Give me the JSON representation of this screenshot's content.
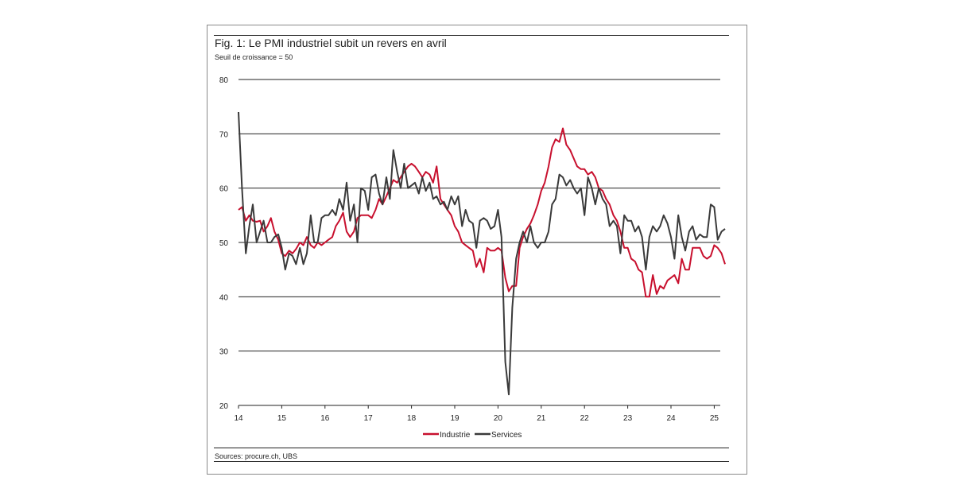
{
  "chart_data": {
    "type": "line",
    "title": "Fig. 1: Le PMI industriel subit un revers en avril",
    "subtitle": "Seuil de croissance = 50",
    "source": "Sources: procure.ch, UBS",
    "ylim": [
      20,
      80
    ],
    "yticks": [
      "20",
      "30",
      "40",
      "50",
      "60",
      "70",
      "80"
    ],
    "xlim": [
      14,
      25.25
    ],
    "xticks": [
      "14",
      "15",
      "16",
      "17",
      "18",
      "19",
      "20",
      "21",
      "22",
      "23",
      "24",
      "25"
    ],
    "grid": "horizontal",
    "legend": "bottom-center",
    "series": [
      {
        "name": "Industrie",
        "color": "#c8102e",
        "points": [
          [
            14.0,
            56.0
          ],
          [
            14.08,
            56.5
          ],
          [
            14.17,
            54.0
          ],
          [
            14.25,
            55.0
          ],
          [
            14.33,
            54.0
          ],
          [
            14.42,
            53.8
          ],
          [
            14.5,
            54.0
          ],
          [
            14.58,
            52.0
          ],
          [
            14.67,
            53.0
          ],
          [
            14.75,
            54.5
          ],
          [
            14.83,
            52.0
          ],
          [
            14.92,
            50.5
          ],
          [
            15.0,
            48.0
          ],
          [
            15.08,
            47.5
          ],
          [
            15.17,
            48.5
          ],
          [
            15.25,
            48.0
          ],
          [
            15.33,
            48.8
          ],
          [
            15.42,
            50.0
          ],
          [
            15.5,
            49.5
          ],
          [
            15.58,
            51.0
          ],
          [
            15.67,
            49.5
          ],
          [
            15.75,
            49.0
          ],
          [
            15.83,
            50.0
          ],
          [
            15.92,
            49.5
          ],
          [
            16.0,
            50.0
          ],
          [
            16.08,
            50.5
          ],
          [
            16.17,
            51.0
          ],
          [
            16.25,
            53.0
          ],
          [
            16.33,
            54.0
          ],
          [
            16.42,
            55.5
          ],
          [
            16.5,
            52.0
          ],
          [
            16.58,
            51.0
          ],
          [
            16.67,
            52.0
          ],
          [
            16.75,
            54.5
          ],
          [
            16.83,
            55.0
          ],
          [
            16.92,
            55.0
          ],
          [
            17.0,
            55.0
          ],
          [
            17.08,
            54.5
          ],
          [
            17.17,
            56.0
          ],
          [
            17.25,
            58.0
          ],
          [
            17.33,
            57.0
          ],
          [
            17.42,
            58.5
          ],
          [
            17.5,
            60.0
          ],
          [
            17.58,
            61.5
          ],
          [
            17.67,
            61.0
          ],
          [
            17.75,
            62.0
          ],
          [
            17.83,
            63.0
          ],
          [
            17.92,
            64.0
          ],
          [
            18.0,
            64.5
          ],
          [
            18.08,
            64.0
          ],
          [
            18.17,
            63.0
          ],
          [
            18.25,
            62.0
          ],
          [
            18.33,
            63.0
          ],
          [
            18.42,
            62.5
          ],
          [
            18.5,
            61.0
          ],
          [
            18.58,
            64.0
          ],
          [
            18.67,
            58.0
          ],
          [
            18.75,
            57.0
          ],
          [
            18.83,
            56.0
          ],
          [
            18.92,
            55.0
          ],
          [
            19.0,
            53.0
          ],
          [
            19.08,
            52.0
          ],
          [
            19.17,
            50.0
          ],
          [
            19.25,
            49.5
          ],
          [
            19.33,
            49.0
          ],
          [
            19.42,
            48.5
          ],
          [
            19.5,
            45.5
          ],
          [
            19.58,
            47.0
          ],
          [
            19.67,
            44.5
          ],
          [
            19.75,
            49.0
          ],
          [
            19.83,
            48.5
          ],
          [
            19.92,
            48.5
          ],
          [
            20.0,
            49.0
          ],
          [
            20.08,
            48.5
          ],
          [
            20.17,
            43.5
          ],
          [
            20.25,
            41.0
          ],
          [
            20.33,
            42.0
          ],
          [
            20.42,
            42.0
          ],
          [
            20.5,
            49.0
          ],
          [
            20.58,
            51.0
          ],
          [
            20.67,
            52.5
          ],
          [
            20.75,
            53.5
          ],
          [
            20.83,
            55.0
          ],
          [
            20.92,
            57.0
          ],
          [
            21.0,
            59.5
          ],
          [
            21.08,
            61.0
          ],
          [
            21.17,
            64.0
          ],
          [
            21.25,
            67.5
          ],
          [
            21.33,
            69.0
          ],
          [
            21.42,
            68.5
          ],
          [
            21.5,
            71.0
          ],
          [
            21.58,
            68.0
          ],
          [
            21.67,
            67.0
          ],
          [
            21.75,
            65.5
          ],
          [
            21.83,
            64.0
          ],
          [
            21.92,
            63.5
          ],
          [
            22.0,
            63.5
          ],
          [
            22.08,
            62.5
          ],
          [
            22.17,
            63.0
          ],
          [
            22.25,
            62.0
          ],
          [
            22.33,
            60.0
          ],
          [
            22.42,
            59.5
          ],
          [
            22.5,
            58.0
          ],
          [
            22.58,
            57.0
          ],
          [
            22.67,
            55.0
          ],
          [
            22.75,
            54.0
          ],
          [
            22.83,
            52.0
          ],
          [
            22.92,
            49.0
          ],
          [
            23.0,
            49.0
          ],
          [
            23.08,
            47.0
          ],
          [
            23.17,
            46.5
          ],
          [
            23.25,
            45.0
          ],
          [
            23.33,
            44.5
          ],
          [
            23.42,
            40.0
          ],
          [
            23.5,
            40.0
          ],
          [
            23.58,
            44.0
          ],
          [
            23.67,
            40.5
          ],
          [
            23.75,
            42.0
          ],
          [
            23.83,
            41.5
          ],
          [
            23.92,
            43.0
          ],
          [
            24.0,
            43.5
          ],
          [
            24.08,
            44.0
          ],
          [
            24.17,
            42.5
          ],
          [
            24.25,
            47.0
          ],
          [
            24.33,
            45.0
          ],
          [
            24.42,
            45.0
          ],
          [
            24.5,
            49.0
          ],
          [
            24.58,
            49.0
          ],
          [
            24.67,
            49.0
          ],
          [
            24.75,
            47.5
          ],
          [
            24.83,
            47.0
          ],
          [
            24.92,
            47.5
          ],
          [
            25.0,
            49.5
          ],
          [
            25.08,
            49.0
          ],
          [
            25.17,
            48.0
          ],
          [
            25.25,
            46.0
          ]
        ]
      },
      {
        "name": "Services",
        "color": "#3a3a3a",
        "points": [
          [
            14.0,
            74.0
          ],
          [
            14.08,
            60.0
          ],
          [
            14.17,
            48.0
          ],
          [
            14.25,
            53.0
          ],
          [
            14.33,
            57.0
          ],
          [
            14.42,
            50.0
          ],
          [
            14.5,
            52.0
          ],
          [
            14.58,
            54.0
          ],
          [
            14.67,
            50.0
          ],
          [
            14.75,
            50.0
          ],
          [
            14.83,
            51.0
          ],
          [
            14.92,
            51.5
          ],
          [
            15.0,
            49.0
          ],
          [
            15.08,
            45.0
          ],
          [
            15.17,
            48.0
          ],
          [
            15.25,
            47.5
          ],
          [
            15.33,
            46.0
          ],
          [
            15.42,
            49.0
          ],
          [
            15.5,
            46.0
          ],
          [
            15.58,
            48.0
          ],
          [
            15.67,
            55.0
          ],
          [
            15.75,
            50.0
          ],
          [
            15.83,
            50.0
          ],
          [
            15.92,
            54.5
          ],
          [
            16.0,
            55.0
          ],
          [
            16.08,
            55.0
          ],
          [
            16.17,
            56.0
          ],
          [
            16.25,
            55.0
          ],
          [
            16.33,
            58.0
          ],
          [
            16.42,
            56.0
          ],
          [
            16.5,
            61.0
          ],
          [
            16.58,
            54.0
          ],
          [
            16.67,
            57.0
          ],
          [
            16.75,
            50.0
          ],
          [
            16.83,
            60.0
          ],
          [
            16.92,
            59.5
          ],
          [
            17.0,
            56.0
          ],
          [
            17.08,
            62.0
          ],
          [
            17.17,
            62.5
          ],
          [
            17.25,
            59.0
          ],
          [
            17.33,
            57.0
          ],
          [
            17.42,
            62.0
          ],
          [
            17.5,
            58.0
          ],
          [
            17.58,
            67.0
          ],
          [
            17.67,
            63.0
          ],
          [
            17.75,
            60.0
          ],
          [
            17.83,
            64.5
          ],
          [
            17.92,
            60.0
          ],
          [
            18.0,
            60.5
          ],
          [
            18.08,
            61.0
          ],
          [
            18.17,
            59.0
          ],
          [
            18.25,
            62.0
          ],
          [
            18.33,
            59.5
          ],
          [
            18.42,
            61.0
          ],
          [
            18.5,
            58.0
          ],
          [
            18.58,
            58.5
          ],
          [
            18.67,
            57.0
          ],
          [
            18.75,
            57.5
          ],
          [
            18.83,
            56.0
          ],
          [
            18.92,
            58.5
          ],
          [
            19.0,
            57.0
          ],
          [
            19.08,
            58.5
          ],
          [
            19.17,
            53.0
          ],
          [
            19.25,
            56.0
          ],
          [
            19.33,
            54.0
          ],
          [
            19.42,
            53.5
          ],
          [
            19.5,
            49.0
          ],
          [
            19.58,
            54.0
          ],
          [
            19.67,
            54.5
          ],
          [
            19.75,
            54.0
          ],
          [
            19.83,
            52.5
          ],
          [
            19.92,
            53.0
          ],
          [
            20.0,
            56.0
          ],
          [
            20.08,
            51.0
          ],
          [
            20.17,
            28.0
          ],
          [
            20.25,
            22.0
          ],
          [
            20.33,
            38.0
          ],
          [
            20.42,
            47.0
          ],
          [
            20.5,
            50.0
          ],
          [
            20.58,
            52.0
          ],
          [
            20.67,
            50.0
          ],
          [
            20.75,
            53.0
          ],
          [
            20.83,
            50.0
          ],
          [
            20.92,
            49.0
          ],
          [
            21.0,
            50.0
          ],
          [
            21.08,
            50.0
          ],
          [
            21.17,
            52.0
          ],
          [
            21.25,
            57.0
          ],
          [
            21.33,
            58.0
          ],
          [
            21.42,
            62.5
          ],
          [
            21.5,
            62.0
          ],
          [
            21.58,
            60.5
          ],
          [
            21.67,
            61.5
          ],
          [
            21.75,
            60.0
          ],
          [
            21.83,
            59.0
          ],
          [
            21.92,
            60.0
          ],
          [
            22.0,
            55.0
          ],
          [
            22.08,
            62.0
          ],
          [
            22.17,
            60.0
          ],
          [
            22.25,
            57.0
          ],
          [
            22.33,
            60.0
          ],
          [
            22.42,
            58.0
          ],
          [
            22.5,
            57.0
          ],
          [
            22.58,
            53.0
          ],
          [
            22.67,
            54.0
          ],
          [
            22.75,
            53.0
          ],
          [
            22.83,
            48.0
          ],
          [
            22.92,
            55.0
          ],
          [
            23.0,
            54.0
          ],
          [
            23.08,
            54.0
          ],
          [
            23.17,
            52.0
          ],
          [
            23.25,
            53.0
          ],
          [
            23.33,
            51.0
          ],
          [
            23.42,
            45.0
          ],
          [
            23.5,
            51.0
          ],
          [
            23.58,
            53.0
          ],
          [
            23.67,
            52.0
          ],
          [
            23.75,
            53.0
          ],
          [
            23.83,
            55.0
          ],
          [
            23.92,
            53.5
          ],
          [
            24.0,
            51.0
          ],
          [
            24.08,
            47.0
          ],
          [
            24.17,
            55.0
          ],
          [
            24.25,
            51.0
          ],
          [
            24.33,
            48.5
          ],
          [
            24.42,
            52.0
          ],
          [
            24.5,
            53.0
          ],
          [
            24.58,
            50.5
          ],
          [
            24.67,
            51.5
          ],
          [
            24.75,
            51.0
          ],
          [
            24.83,
            51.0
          ],
          [
            24.92,
            57.0
          ],
          [
            25.0,
            56.5
          ],
          [
            25.08,
            50.5
          ],
          [
            25.17,
            52.0
          ],
          [
            25.25,
            52.5
          ]
        ]
      }
    ]
  }
}
